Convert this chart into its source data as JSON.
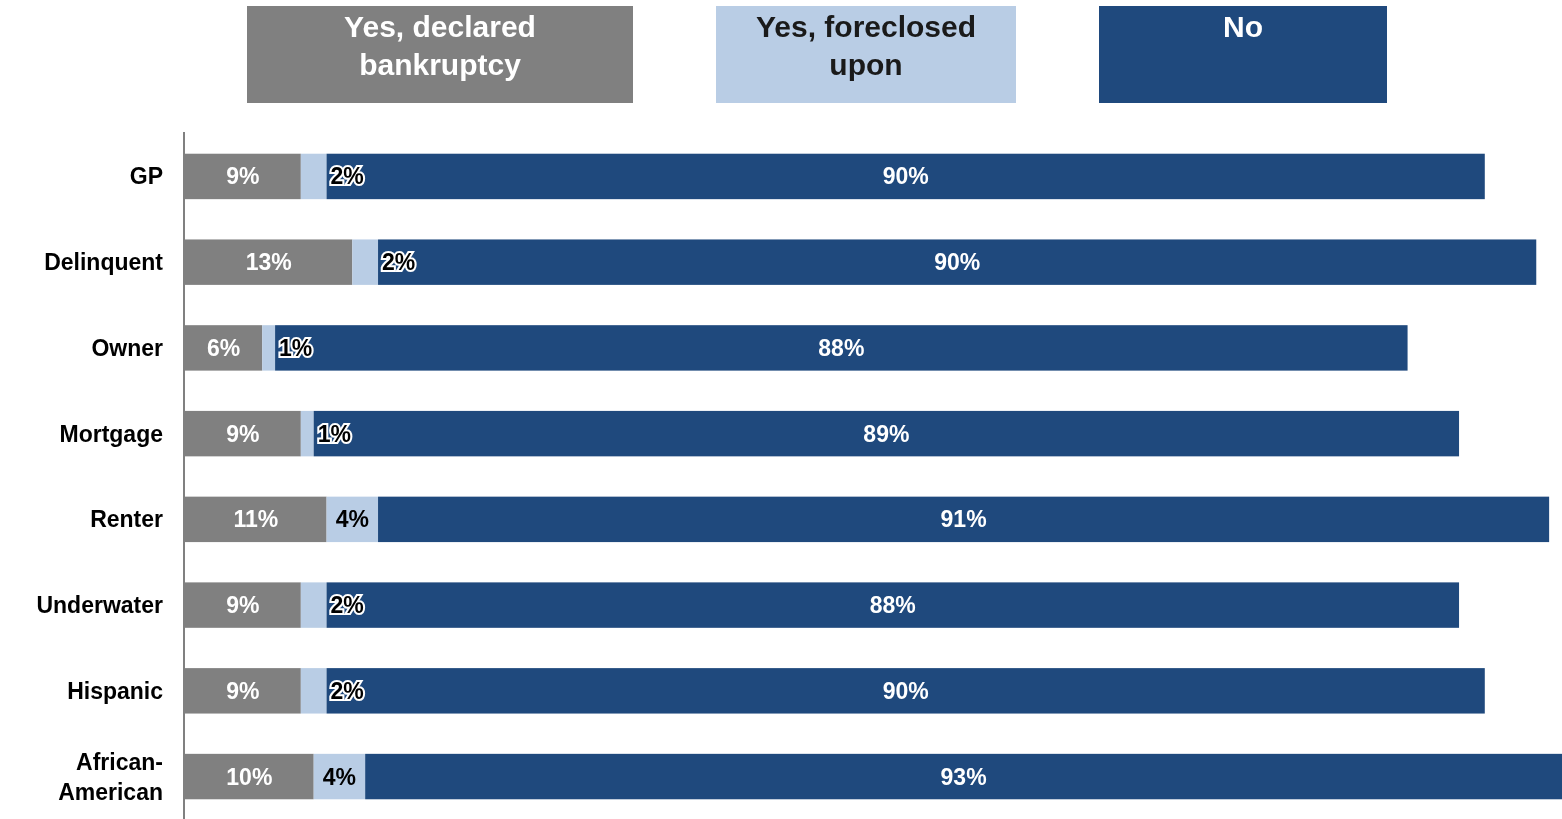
{
  "chart_data": {
    "type": "bar",
    "orientation": "horizontal",
    "stacked": true,
    "legend": "top",
    "categories": [
      "GP",
      "Delinquent",
      "Owner",
      "Mortgage",
      "Renter",
      "Underwater",
      "Hispanic",
      "African-American"
    ],
    "series": [
      {
        "name": "Yes, declared bankruptcy",
        "color": "#808080",
        "values": [
          9,
          13,
          6,
          9,
          11,
          9,
          9,
          10
        ],
        "value_labels": [
          "9%",
          "13%",
          "6%",
          "9%",
          "11%",
          "9%",
          "9%",
          "10%"
        ]
      },
      {
        "name": "Yes, foreclosed upon",
        "color": "#b9cde5",
        "values": [
          2,
          2,
          1,
          1,
          4,
          2,
          2,
          4
        ],
        "value_labels": [
          "2%",
          "2%",
          "1%",
          "1%",
          "4%",
          "2%",
          "2%",
          "4%"
        ]
      },
      {
        "name": "No",
        "color": "#1f497d",
        "values": [
          90,
          90,
          88,
          89,
          91,
          88,
          90,
          93
        ],
        "value_labels": [
          "90%",
          "90%",
          "88%",
          "89%",
          "91%",
          "88%",
          "90%",
          "93%"
        ]
      }
    ]
  }
}
